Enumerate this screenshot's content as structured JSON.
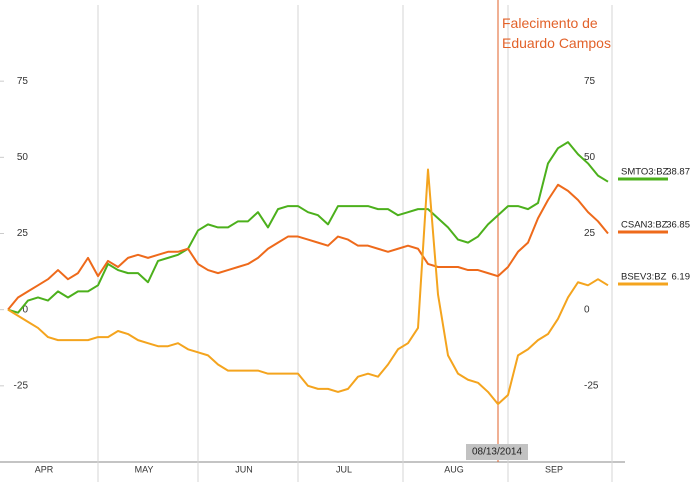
{
  "chart_data": {
    "type": "line",
    "categories": [
      null,
      null,
      null,
      null,
      "APR",
      null,
      null,
      null,
      null,
      null,
      null,
      null,
      null,
      null,
      "MAY",
      null,
      null,
      null,
      null,
      null,
      null,
      null,
      null,
      null,
      "JUN",
      null,
      null,
      null,
      null,
      null,
      null,
      null,
      null,
      null,
      "JUL",
      null,
      null,
      null,
      null,
      null,
      null,
      null,
      null,
      null,
      null,
      "AUG",
      null,
      null,
      null,
      "08/13/2014",
      null,
      null,
      null,
      null,
      null,
      "SEP",
      null,
      null,
      null,
      null,
      null
    ],
    "ylim": [
      -50,
      100
    ],
    "yticks": [
      -25,
      0,
      25,
      50,
      75
    ],
    "annotation": {
      "text": "Falecimento de Eduardo Campos",
      "category": "08/13/2014",
      "color": "#e2622a"
    },
    "series": [
      {
        "name": "SMTO3:BZ",
        "price": 38.87,
        "color": "#4cb01c",
        "values": [
          0,
          -1,
          3,
          4,
          3,
          6,
          4,
          6,
          6,
          8,
          15,
          13,
          12,
          12,
          9,
          16,
          17,
          18,
          20,
          26,
          28,
          27,
          27,
          29,
          29,
          32,
          27,
          33,
          34,
          34,
          32,
          31,
          28,
          34,
          34,
          34,
          34,
          33,
          33,
          31,
          32,
          33,
          33,
          30,
          27,
          23,
          22,
          24,
          28,
          31,
          34,
          34,
          33,
          35,
          48,
          53,
          55,
          51,
          48,
          44,
          42
        ]
      },
      {
        "name": "CSAN3:BZ",
        "price": 36.85,
        "color": "#ee6a1b",
        "values": [
          0,
          4,
          6,
          8,
          10,
          13,
          10,
          12,
          17,
          11,
          16,
          14,
          17,
          18,
          17,
          18,
          19,
          19,
          20,
          15,
          13,
          12,
          13,
          14,
          15,
          17,
          20,
          22,
          24,
          24,
          23,
          22,
          21,
          24,
          23,
          21,
          21,
          20,
          19,
          20,
          21,
          20,
          15,
          14,
          14,
          14,
          13,
          13,
          12,
          11,
          14,
          19,
          22,
          30,
          36,
          41,
          39,
          36,
          32,
          29,
          25
        ]
      },
      {
        "name": "BSEV3:BZ",
        "price": 6.19,
        "color": "#f4a41e",
        "values": [
          0,
          -2,
          -4,
          -6,
          -9,
          -10,
          -10,
          -10,
          -10,
          -9,
          -9,
          -7,
          -8,
          -10,
          -11,
          -12,
          -12,
          -11,
          -13,
          -14,
          -15,
          -18,
          -20,
          -20,
          -20,
          -20,
          -21,
          -21,
          -21,
          -21,
          -25,
          -26,
          -26,
          -27,
          -26,
          -22,
          -21,
          -22,
          -18,
          -13,
          -11,
          -6,
          46,
          5,
          -15,
          -21,
          -23,
          -24,
          -27,
          -31,
          -28,
          -15,
          -13,
          -10,
          -8,
          -3,
          4,
          9,
          8,
          10,
          8
        ]
      }
    ]
  }
}
